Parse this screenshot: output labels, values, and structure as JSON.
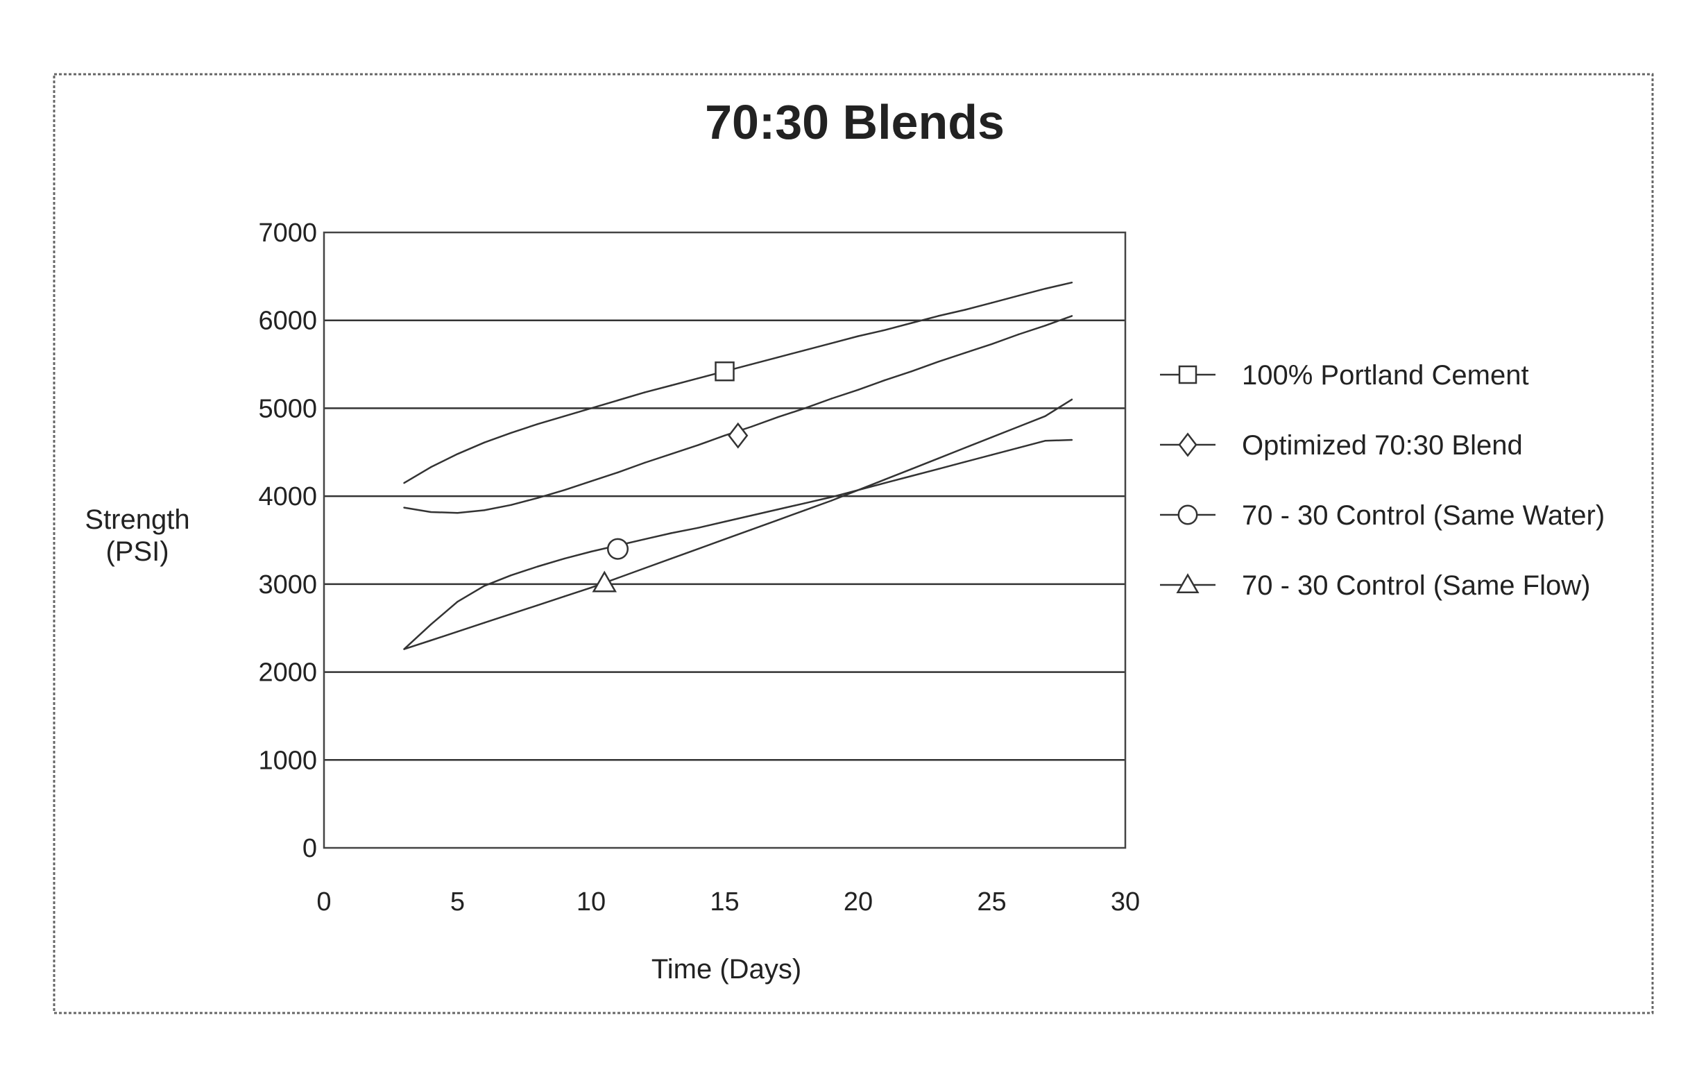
{
  "chart_data": {
    "type": "line",
    "title": "70:30 Blends",
    "xlabel": "Time (Days)",
    "ylabel_lines": [
      "Strength",
      "(PSI)"
    ],
    "xlim": [
      0,
      30
    ],
    "ylim": [
      0,
      7000
    ],
    "x_ticks": [
      0,
      5,
      10,
      15,
      20,
      25,
      30
    ],
    "y_ticks": [
      0,
      1000,
      2000,
      3000,
      4000,
      5000,
      6000,
      7000
    ],
    "grid": "horizontal",
    "legend_position": "right",
    "series": [
      {
        "name": "100% Portland Cement",
        "marker": "square",
        "x": [
          3,
          4,
          5,
          6,
          7,
          8,
          9,
          10,
          11,
          12,
          13,
          14,
          15,
          16,
          17,
          18,
          19,
          20,
          21,
          22,
          23,
          24,
          25,
          26,
          27,
          28
        ],
        "y": [
          4150,
          4330,
          4480,
          4610,
          4720,
          4820,
          4910,
          5000,
          5090,
          5180,
          5260,
          5340,
          5420,
          5500,
          5580,
          5660,
          5740,
          5820,
          5890,
          5970,
          6050,
          6120,
          6200,
          6280,
          6360,
          6430
        ],
        "marker_at": {
          "x": 15,
          "y": 5420
        }
      },
      {
        "name": "Optimized 70:30 Blend",
        "marker": "diamond",
        "x": [
          3,
          4,
          5,
          6,
          7,
          8,
          9,
          10,
          11,
          12,
          13,
          14,
          15,
          16,
          17,
          18,
          19,
          20,
          21,
          22,
          23,
          24,
          25,
          26,
          27,
          28
        ],
        "y": [
          3870,
          3820,
          3810,
          3840,
          3900,
          3980,
          4070,
          4170,
          4270,
          4380,
          4480,
          4580,
          4690,
          4790,
          4900,
          5000,
          5110,
          5210,
          5320,
          5420,
          5530,
          5630,
          5730,
          5840,
          5940,
          6050
        ],
        "marker_at": {
          "x": 15.5,
          "y": 4690
        }
      },
      {
        "name": "70 - 30 Control (Same Water)",
        "marker": "circle",
        "x": [
          3,
          4,
          5,
          6,
          7,
          8,
          9,
          10,
          11,
          12,
          13,
          14,
          15,
          16,
          17,
          18,
          19,
          20,
          21,
          22,
          23,
          24,
          25,
          26,
          27,
          28
        ],
        "y": [
          2260,
          2540,
          2800,
          2980,
          3100,
          3200,
          3290,
          3370,
          3440,
          3510,
          3580,
          3640,
          3710,
          3780,
          3850,
          3920,
          3990,
          4070,
          4150,
          4230,
          4310,
          4390,
          4470,
          4550,
          4630,
          4640
        ],
        "marker_at": {
          "x": 11,
          "y": 3400
        }
      },
      {
        "name": "70 - 30 Control (Same Flow)",
        "marker": "triangle",
        "x": [
          3,
          4,
          5,
          6,
          7,
          8,
          9,
          10,
          11,
          12,
          13,
          14,
          15,
          16,
          17,
          18,
          19,
          20,
          21,
          22,
          23,
          24,
          25,
          26,
          27,
          28
        ],
        "y": [
          2260,
          2360,
          2460,
          2560,
          2660,
          2760,
          2860,
          2960,
          3070,
          3180,
          3290,
          3400,
          3510,
          3620,
          3730,
          3840,
          3950,
          4070,
          4190,
          4310,
          4430,
          4550,
          4670,
          4790,
          4910,
          5100
        ],
        "marker_at": {
          "x": 10.5,
          "y": 3010
        }
      }
    ]
  }
}
